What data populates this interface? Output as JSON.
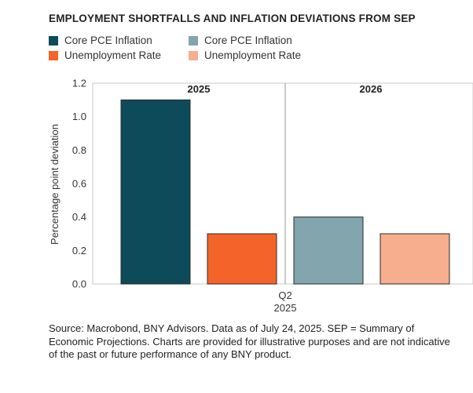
{
  "chart_data": {
    "type": "bar",
    "title": "EMPLOYMENT SHORTFALLS AND INFLATION DEVIATIONS FROM SEP",
    "ylabel": "Percentage point deviation",
    "xlabel_lines": [
      "Q2",
      "2025"
    ],
    "ylim": [
      0,
      1.2
    ],
    "yticks": [
      "0.0",
      "0.2",
      "0.4",
      "0.6",
      "0.8",
      "1.0",
      "1.2"
    ],
    "groups": [
      "2025",
      "2026"
    ],
    "bars": [
      {
        "group": "2025",
        "series": "Core PCE Inflation",
        "value": 1.1,
        "color": "#0d4a5a"
      },
      {
        "group": "2025",
        "series": "Unemployment Rate",
        "value": 0.3,
        "color": "#f4642a"
      },
      {
        "group": "2026",
        "series": "Core PCE Inflation",
        "value": 0.4,
        "color": "#82a5ae"
      },
      {
        "group": "2026",
        "series": "Unemployment Rate",
        "value": 0.3,
        "color": "#f6ae8e"
      }
    ],
    "legend": [
      {
        "label": "Core PCE Inflation",
        "color": "#0d4a5a"
      },
      {
        "label": "Core PCE Inflation",
        "color": "#82a5ae"
      },
      {
        "label": "Unemployment Rate",
        "color": "#f4642a"
      },
      {
        "label": "Unemployment Rate",
        "color": "#f6ae8e"
      }
    ]
  },
  "source": "Source: Macrobond, BNY Advisors. Data as of July 24, 2025. SEP = Summary of Economic Projections. Charts are provided for illustrative purposes and are not indicative of the past or future performance of any BNY product."
}
